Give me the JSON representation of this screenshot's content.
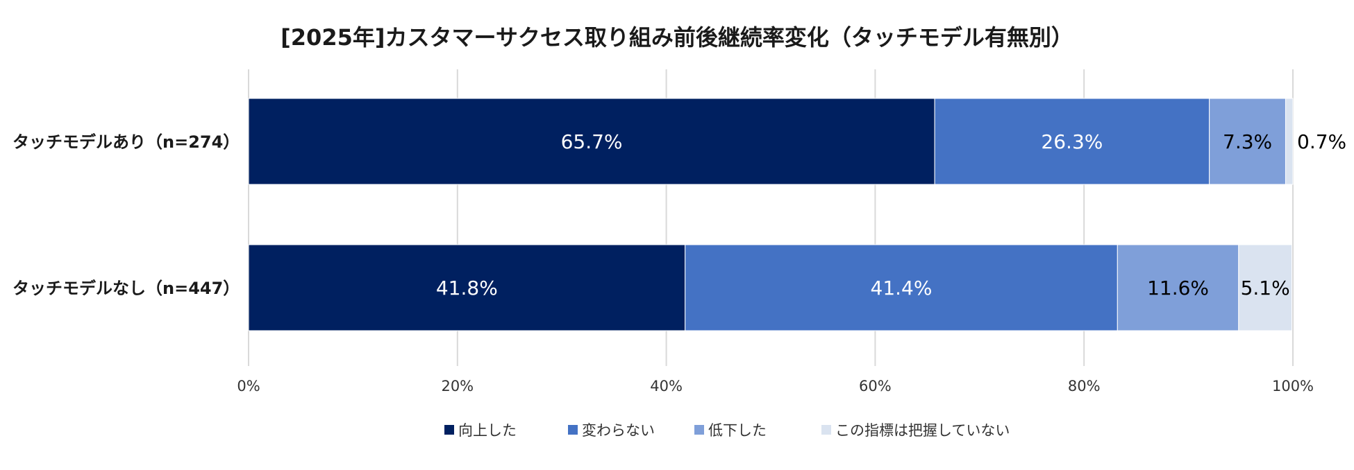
{
  "chart_data": {
    "type": "bar",
    "orientation": "horizontal",
    "stacked": true,
    "title": "[2025年]カスタマーサクセス取り組み前後継続率変化（タッチモデル有無別）",
    "categories": [
      "タッチモデルあり（n=274）",
      "タッチモデルなし（n=447）"
    ],
    "series": [
      {
        "name": "向上した",
        "values": [
          65.7,
          41.8
        ],
        "color": "#002060",
        "label_color": "#ffffff"
      },
      {
        "name": "変わらない",
        "values": [
          26.3,
          41.4
        ],
        "color": "#4472c4",
        "label_color": "#ffffff"
      },
      {
        "name": "低下した",
        "values": [
          7.3,
          11.6
        ],
        "color": "#7f9fd9",
        "label_color": "#000000"
      },
      {
        "name": "この指標は把握していない",
        "values": [
          0.7,
          5.1
        ],
        "color": "#dae3f0",
        "label_color": "#000000"
      }
    ],
    "data_labels": [
      [
        "65.7%",
        "26.3%",
        "7.3%",
        "0.7%"
      ],
      [
        "41.8%",
        "41.4%",
        "11.6%",
        "5.1%"
      ]
    ],
    "x_ticks": [
      "0%",
      "20%",
      "40%",
      "60%",
      "80%",
      "100%"
    ],
    "xlim": [
      0,
      100
    ],
    "grid": "vertical",
    "legend_position": "bottom"
  }
}
